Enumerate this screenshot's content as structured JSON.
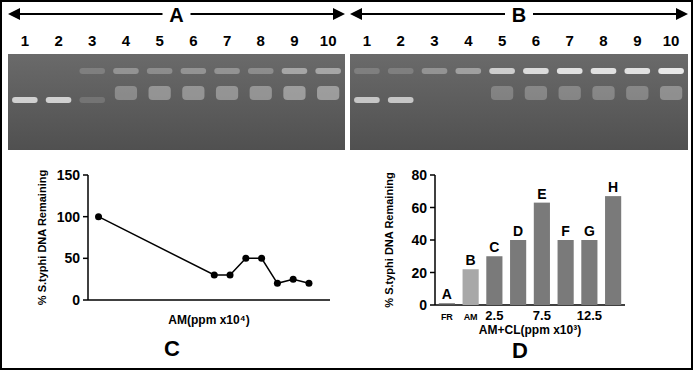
{
  "gels": [
    {
      "label": "A",
      "lanes": [
        "1",
        "2",
        "3",
        "4",
        "5",
        "6",
        "7",
        "8",
        "9",
        "10"
      ]
    },
    {
      "label": "B",
      "lanes": [
        "1",
        "2",
        "3",
        "4",
        "5",
        "6",
        "7",
        "8",
        "9",
        "10"
      ]
    }
  ],
  "chart_data": [
    {
      "type": "line",
      "title": "C",
      "y_label": "% S.typhi DNA Remaining",
      "x_label": "AM(ppm x10⁴)",
      "x": [
        0,
        11,
        12.5,
        14,
        15.5,
        17,
        18.5,
        20
      ],
      "values": [
        100,
        30,
        30,
        50,
        50,
        20,
        25,
        20
      ],
      "xlim": [
        -1,
        22
      ],
      "ylim": [
        0,
        150
      ],
      "yticks": [
        0,
        50,
        100,
        150
      ],
      "tick_labels": "y",
      "color": "#000000",
      "marker": "circle"
    },
    {
      "type": "bar",
      "title": "D",
      "y_label": "% S.typhi DNA Remaining",
      "x_label": "AM+CL(ppm x10³)",
      "categories": [
        "FR",
        "AM",
        "2.5",
        null,
        "7.5",
        null,
        "12.5",
        null
      ],
      "values": [
        1,
        22,
        30,
        40,
        63,
        40,
        40,
        67
      ],
      "annotations": [
        "A",
        "B",
        "C",
        "D",
        "E",
        "F",
        "G",
        "H"
      ],
      "colors": [
        "#555555",
        "#a8a8a8",
        "#7a7a7a",
        "#7a7a7a",
        "#7a7a7a",
        "#7a7a7a",
        "#7a7a7a",
        "#7a7a7a"
      ],
      "ylim": [
        0,
        80
      ],
      "yticks": [
        0,
        20,
        40,
        60,
        80
      ]
    }
  ]
}
